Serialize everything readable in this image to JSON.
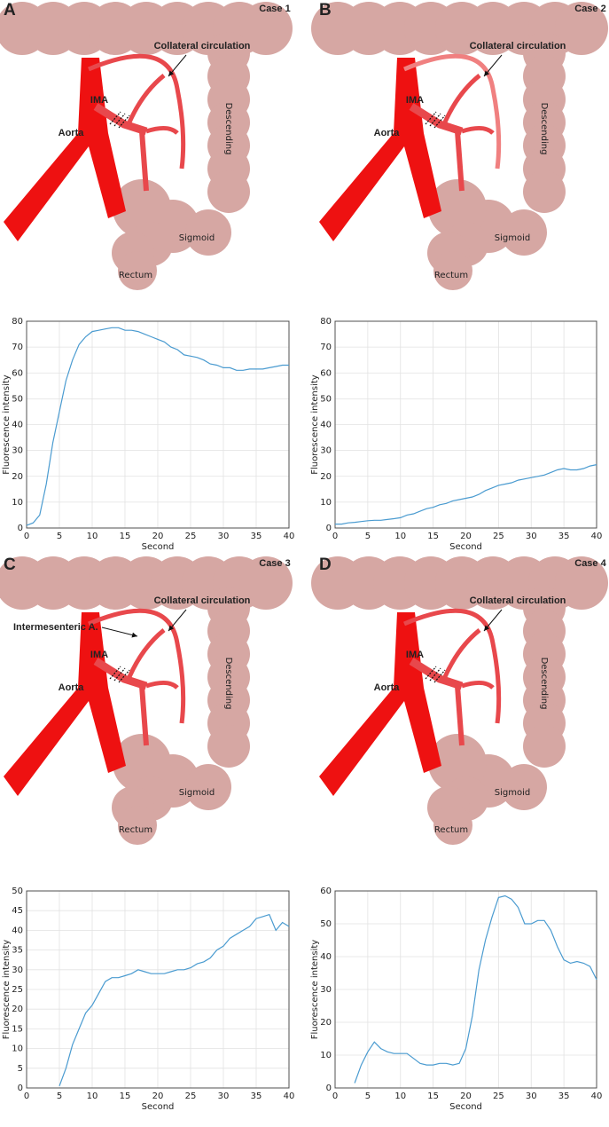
{
  "panels": [
    {
      "letter": "A",
      "case": "Case 1",
      "collateral": "Collateral circulation",
      "ima": "IMA",
      "aorta": "Aorta",
      "descending": "Descending",
      "sigmoid": "Sigmoid",
      "rectum": "Rectum"
    },
    {
      "letter": "B",
      "case": "Case 2",
      "collateral": "Collateral circulation",
      "ima": "IMA",
      "aorta": "Aorta",
      "descending": "Descending",
      "sigmoid": "Sigmoid",
      "rectum": "Rectum"
    },
    {
      "letter": "C",
      "case": "Case 3",
      "collateral": "Collateral circulation",
      "intermesenteric": "Intermesenteric A.",
      "ima": "IMA",
      "aorta": "Aorta",
      "descending": "Descending",
      "sigmoid": "Sigmoid",
      "rectum": "Rectum"
    },
    {
      "letter": "D",
      "case": "Case 4",
      "collateral": "Collateral circulation",
      "ima": "IMA",
      "aorta": "Aorta",
      "descending": "Descending",
      "sigmoid": "Sigmoid",
      "rectum": "Rectum"
    }
  ],
  "chart_data": [
    {
      "type": "line",
      "xlabel": "Second",
      "ylabel": "Fluorescence intensity",
      "grid": true,
      "x": [
        0,
        1,
        2,
        3,
        4,
        5,
        6,
        7,
        8,
        9,
        10,
        11,
        12,
        13,
        14,
        15,
        16,
        17,
        18,
        19,
        20,
        21,
        22,
        23,
        24,
        25,
        26,
        27,
        28,
        29,
        30,
        31,
        32,
        33,
        34,
        35,
        36,
        37,
        38,
        39,
        40
      ],
      "series": [
        {
          "color": "#4a9bd0",
          "values": [
            1,
            2,
            5,
            17,
            33,
            45,
            57,
            65,
            71,
            74,
            76,
            76.5,
            77,
            77.5,
            77.5,
            76.5,
            76.5,
            76,
            75,
            74,
            73,
            72,
            70,
            69,
            67,
            66.5,
            66,
            65,
            63.5,
            63,
            62,
            62,
            61,
            61,
            61.5,
            61.5,
            61.5,
            62,
            62.5,
            63,
            63
          ]
        }
      ],
      "xlim": [
        0,
        40
      ],
      "xticks": [
        0,
        5,
        10,
        15,
        20,
        25,
        30,
        35,
        40
      ],
      "ylim": [
        0,
        80
      ],
      "yticks": [
        0,
        10,
        20,
        30,
        40,
        50,
        60,
        70,
        80
      ]
    },
    {
      "type": "line",
      "xlabel": "Second",
      "ylabel": "Fluorescence intensity",
      "grid": true,
      "x": [
        0,
        1,
        2,
        3,
        4,
        5,
        6,
        7,
        8,
        9,
        10,
        11,
        12,
        13,
        14,
        15,
        16,
        17,
        18,
        19,
        20,
        21,
        22,
        23,
        24,
        25,
        26,
        27,
        28,
        29,
        30,
        31,
        32,
        33,
        34,
        35,
        36,
        37,
        38,
        39,
        40
      ],
      "series": [
        {
          "color": "#4a9bd0",
          "values": [
            1.5,
            1.5,
            2,
            2.2,
            2.5,
            2.8,
            3,
            3,
            3.3,
            3.6,
            4,
            5,
            5.5,
            6.5,
            7.5,
            8,
            9,
            9.5,
            10.5,
            11,
            11.5,
            12,
            13,
            14.5,
            15.5,
            16.5,
            17,
            17.5,
            18.5,
            19,
            19.5,
            20,
            20.5,
            21.5,
            22.5,
            23,
            22.5,
            22.5,
            23,
            24,
            24.5
          ]
        }
      ],
      "xlim": [
        0,
        40
      ],
      "xticks": [
        0,
        5,
        10,
        15,
        20,
        25,
        30,
        35,
        40
      ],
      "ylim": [
        0,
        80
      ],
      "yticks": [
        0,
        10,
        20,
        30,
        40,
        50,
        60,
        70,
        80
      ]
    },
    {
      "type": "line",
      "xlabel": "Second",
      "ylabel": "Fluorescence intensity",
      "grid": true,
      "x": [
        0,
        1,
        2,
        3,
        4,
        5,
        6,
        7,
        8,
        9,
        10,
        11,
        12,
        13,
        14,
        15,
        16,
        17,
        18,
        19,
        20,
        21,
        22,
        23,
        24,
        25,
        26,
        27,
        28,
        29,
        30,
        31,
        32,
        33,
        34,
        35,
        36,
        37,
        38,
        39,
        40
      ],
      "series": [
        {
          "color": "#4a9bd0",
          "values": [
            null,
            null,
            null,
            null,
            null,
            0.5,
            5,
            11,
            15,
            19,
            21,
            24,
            27,
            28,
            28,
            28.5,
            29,
            30,
            29.5,
            29,
            29,
            29,
            29.5,
            30,
            30,
            30.5,
            31.5,
            32,
            33,
            35,
            36,
            38,
            39,
            40,
            41,
            43,
            43.5,
            44,
            40,
            42,
            41
          ]
        }
      ],
      "xlim": [
        0,
        40
      ],
      "xticks": [
        0,
        5,
        10,
        15,
        20,
        25,
        30,
        35,
        40
      ],
      "ylim": [
        0,
        50
      ],
      "yticks": [
        0,
        5,
        10,
        15,
        20,
        25,
        30,
        35,
        40,
        45,
        50
      ]
    },
    {
      "type": "line",
      "xlabel": "Second",
      "ylabel": "Fluorescence intensity",
      "grid": true,
      "x": [
        0,
        1,
        2,
        3,
        4,
        5,
        6,
        7,
        8,
        9,
        10,
        11,
        12,
        13,
        14,
        15,
        16,
        17,
        18,
        19,
        20,
        21,
        22,
        23,
        24,
        25,
        26,
        27,
        28,
        29,
        30,
        31,
        32,
        33,
        34,
        35,
        36,
        37,
        38,
        39,
        40
      ],
      "series": [
        {
          "color": "#4a9bd0",
          "values": [
            null,
            null,
            null,
            1.5,
            7,
            11,
            14,
            12,
            11,
            10.5,
            10.5,
            10.5,
            9,
            7.5,
            7,
            7,
            7.5,
            7.5,
            7,
            7.5,
            12,
            22,
            36,
            45,
            52,
            58,
            58.5,
            57.5,
            55,
            50,
            50,
            51,
            51,
            48,
            43,
            39,
            38,
            38.5,
            38,
            37,
            33
          ]
        }
      ],
      "xlim": [
        0,
        40
      ],
      "xticks": [
        0,
        5,
        10,
        15,
        20,
        25,
        30,
        35,
        40
      ],
      "ylim": [
        0,
        60
      ],
      "yticks": [
        0,
        10,
        20,
        30,
        40,
        50,
        60
      ]
    }
  ]
}
